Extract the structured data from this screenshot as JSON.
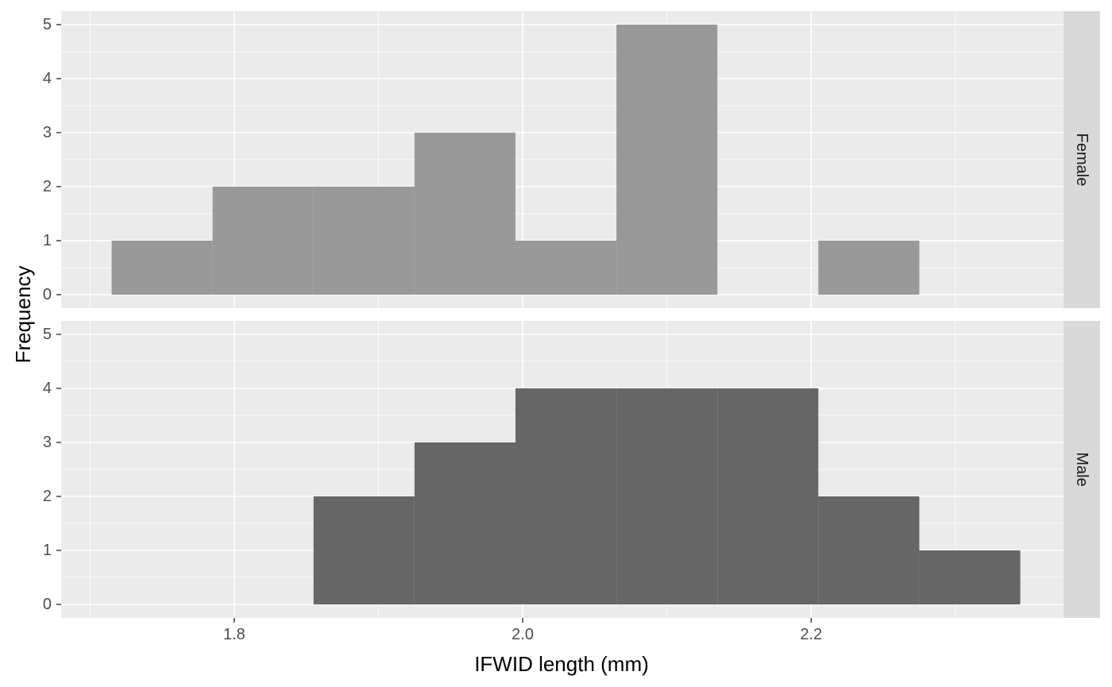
{
  "chart_data": {
    "type": "bar",
    "xlabel": "IFWID length (mm)",
    "ylabel": "Frequency",
    "xlim": [
      1.68,
      2.375
    ],
    "ylim": [
      -0.25,
      5.25
    ],
    "x_ticks": [
      "1.8",
      "2.0",
      "2.2"
    ],
    "x_tick_values": [
      1.8,
      2.0,
      2.2
    ],
    "y_ticks": [
      "0",
      "1",
      "2",
      "3",
      "4",
      "5"
    ],
    "y_tick_values": [
      0,
      1,
      2,
      3,
      4,
      5
    ],
    "grid": true,
    "bin_edges": [
      1.715,
      1.785,
      1.855,
      1.925,
      1.995,
      2.065,
      2.135,
      2.205,
      2.275,
      2.345
    ],
    "panels": [
      {
        "strip": "Female",
        "color": "#999999",
        "counts": [
          1,
          2,
          2,
          3,
          1,
          5,
          0,
          1,
          0
        ]
      },
      {
        "strip": "Male",
        "color": "#666666",
        "counts": [
          0,
          0,
          2,
          3,
          4,
          4,
          4,
          2,
          1
        ]
      }
    ]
  },
  "colors": {
    "panel_background": "#ebebeb",
    "grid_major": "#ffffff",
    "strip_background": "#d9d9d9",
    "tick_text": "#4d4d4d"
  }
}
